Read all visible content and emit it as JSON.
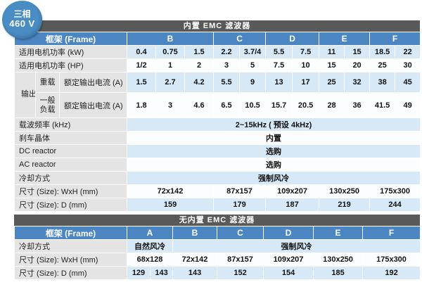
{
  "badge": {
    "line1": "三相",
    "line2": "460 V"
  },
  "colors": {
    "badge_blue": "#4a8cc4",
    "header_blue": "#4b86c3",
    "title_bar_gray": "#59595a",
    "row_blue": "#d7e9f6",
    "label_gray": "#e4e4e4"
  },
  "table_emc": {
    "title": "内置 EMC 滤波器",
    "frame_label": "框架 (Frame)",
    "frames": [
      "B",
      "C",
      "D",
      "E",
      "F"
    ],
    "rows": {
      "kw": {
        "label": "适用电机功率 (kW)",
        "values": [
          "0.4",
          "0.75",
          "1.5",
          "2.2",
          "3.7/4",
          "5.5",
          "7.5",
          "11",
          "15",
          "18.5",
          "22"
        ]
      },
      "hp": {
        "label": "适用电机功率 (HP)",
        "values": [
          "1/2",
          "1",
          "2",
          "3",
          "5",
          "7.5",
          "10",
          "15",
          "20",
          "25",
          "30"
        ]
      },
      "output_label": "输出",
      "heavy": {
        "load_label": "重载",
        "spec_label": "额定输出电流 (A)",
        "values": [
          "1.5",
          "2.7",
          "4.2",
          "5.5",
          "9",
          "13",
          "17",
          "25",
          "32",
          "38",
          "45"
        ]
      },
      "normal": {
        "load_label": "一般负载",
        "spec_label": "额定输出电流 (A)",
        "values": [
          "1.8",
          "3",
          "4.6",
          "6.5",
          "10.5",
          "15.7",
          "20.5",
          "28",
          "36",
          "41.5",
          "49"
        ]
      },
      "carrier": {
        "label": "载波频率 (kHz)",
        "value": "2~15kHz ( 预设 4kHz)"
      },
      "brake": {
        "label": "刹车晶体",
        "value": "内置"
      },
      "dc": {
        "label": "DC reactor",
        "value": "选购"
      },
      "ac": {
        "label": "AC reactor",
        "value": "选购"
      },
      "cooling": {
        "label": "冷却方式",
        "value": "强制风冷"
      },
      "wxh": {
        "label": "尺寸 (Size): WxH (mm)",
        "values": [
          "72x142",
          "87x157",
          "109x207",
          "130x250",
          "175x300"
        ]
      },
      "depth": {
        "label": "尺寸 (Size): D (mm)",
        "values": [
          "159",
          "179",
          "187",
          "219",
          "244"
        ]
      }
    }
  },
  "table_no_emc": {
    "title": "无内置 EMC 滤波器",
    "frame_label": "框架 (Frame)",
    "frames": [
      "A",
      "B",
      "C",
      "D",
      "E",
      "F"
    ],
    "rows": {
      "cooling": {
        "label": "冷却方式",
        "natural": "自然风冷",
        "forced": "强制风冷"
      },
      "wxh": {
        "label": "尺寸 (Size): WxH (mm)",
        "values": [
          "68x128",
          "72x142",
          "87x157",
          "109x207",
          "130x250",
          "175x300"
        ]
      },
      "depth": {
        "label": "尺寸 (Size): D (mm)",
        "values": [
          "129",
          "143",
          "143",
          "152",
          "154",
          "185",
          "192"
        ]
      }
    }
  }
}
